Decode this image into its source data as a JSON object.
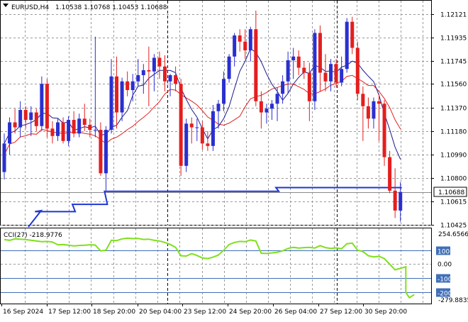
{
  "header": {
    "symbol": "EURUSD,H4",
    "ohlc": "1.10538 1.10768 1.10453 1.10688"
  },
  "price_axis": {
    "labels": [
      "1.12121",
      "1.11935",
      "1.11745",
      "1.11560",
      "1.11370",
      "1.11180",
      "1.10990",
      "1.10800",
      "1.10615",
      "1.10425"
    ],
    "current_price": "1.10688"
  },
  "indicator": {
    "label": "CCI(27) -218.9776",
    "max_label": "254.6566",
    "min_label": "-279.8835",
    "levels": [
      "100",
      "0.00",
      "-100",
      "-200"
    ]
  },
  "time_axis": {
    "labels": [
      "16 Sep 2024",
      "17 Sep 12:00",
      "18 Sep 20:00",
      "20 Sep 04:00",
      "23 Sep 12:00",
      "24 Sep 20:00",
      "26 Sep 04:00",
      "27 Sep 12:00",
      "30 Sep 20:00"
    ]
  },
  "colors": {
    "bull": "#2a2fcf",
    "bear": "#e41e1e",
    "ma_fast": "#e02020",
    "ma_slow": "#1a1a8c",
    "stop_line": "#1f35d6",
    "cci": "#7fe01c",
    "level_100": "#3f6fb8"
  },
  "chart_data": {
    "type": "candlestick",
    "price_range": [
      1.10425,
      1.12121
    ],
    "candles": [
      {
        "o": 1.1085,
        "h": 1.1116,
        "l": 1.1079,
        "c": 1.1108
      },
      {
        "o": 1.1108,
        "h": 1.1129,
        "l": 1.1099,
        "c": 1.1125
      },
      {
        "o": 1.1125,
        "h": 1.1136,
        "l": 1.1116,
        "c": 1.1121
      },
      {
        "o": 1.1121,
        "h": 1.1142,
        "l": 1.1113,
        "c": 1.1135
      },
      {
        "o": 1.1135,
        "h": 1.1138,
        "l": 1.112,
        "c": 1.1127
      },
      {
        "o": 1.1127,
        "h": 1.1138,
        "l": 1.1114,
        "c": 1.1133
      },
      {
        "o": 1.1133,
        "h": 1.1136,
        "l": 1.1118,
        "c": 1.1122
      },
      {
        "o": 1.1122,
        "h": 1.1162,
        "l": 1.1118,
        "c": 1.1156
      },
      {
        "o": 1.1156,
        "h": 1.116,
        "l": 1.1113,
        "c": 1.112
      },
      {
        "o": 1.112,
        "h": 1.1126,
        "l": 1.1108,
        "c": 1.1114
      },
      {
        "o": 1.1114,
        "h": 1.1128,
        "l": 1.111,
        "c": 1.1125
      },
      {
        "o": 1.1125,
        "h": 1.1129,
        "l": 1.1108,
        "c": 1.111
      },
      {
        "o": 1.111,
        "h": 1.113,
        "l": 1.1106,
        "c": 1.1127
      },
      {
        "o": 1.1127,
        "h": 1.1134,
        "l": 1.1113,
        "c": 1.1116
      },
      {
        "o": 1.1116,
        "h": 1.1132,
        "l": 1.1113,
        "c": 1.1128
      },
      {
        "o": 1.1128,
        "h": 1.114,
        "l": 1.1118,
        "c": 1.1123
      },
      {
        "o": 1.1123,
        "h": 1.1128,
        "l": 1.1113,
        "c": 1.1119
      },
      {
        "o": 1.1119,
        "h": 1.1194,
        "l": 1.1113,
        "c": 1.1119
      },
      {
        "o": 1.1119,
        "h": 1.1125,
        "l": 1.1082,
        "c": 1.1084
      },
      {
        "o": 1.1084,
        "h": 1.1122,
        "l": 1.107,
        "c": 1.1119
      },
      {
        "o": 1.1119,
        "h": 1.1176,
        "l": 1.1116,
        "c": 1.1162
      },
      {
        "o": 1.1162,
        "h": 1.1178,
        "l": 1.112,
        "c": 1.1133
      },
      {
        "o": 1.1133,
        "h": 1.1161,
        "l": 1.1126,
        "c": 1.1158
      },
      {
        "o": 1.1158,
        "h": 1.1166,
        "l": 1.1146,
        "c": 1.1151
      },
      {
        "o": 1.1151,
        "h": 1.1164,
        "l": 1.1142,
        "c": 1.1158
      },
      {
        "o": 1.1158,
        "h": 1.1176,
        "l": 1.1154,
        "c": 1.1163
      },
      {
        "o": 1.1163,
        "h": 1.1172,
        "l": 1.1148,
        "c": 1.1167
      },
      {
        "o": 1.1167,
        "h": 1.1186,
        "l": 1.1138,
        "c": 1.1166
      },
      {
        "o": 1.1166,
        "h": 1.118,
        "l": 1.115,
        "c": 1.1177
      },
      {
        "o": 1.1177,
        "h": 1.1182,
        "l": 1.116,
        "c": 1.117
      },
      {
        "o": 1.117,
        "h": 1.1179,
        "l": 1.115,
        "c": 1.1158
      },
      {
        "o": 1.1158,
        "h": 1.1164,
        "l": 1.1146,
        "c": 1.1163
      },
      {
        "o": 1.1163,
        "h": 1.117,
        "l": 1.115,
        "c": 1.1156
      },
      {
        "o": 1.1156,
        "h": 1.116,
        "l": 1.1082,
        "c": 1.109
      },
      {
        "o": 1.109,
        "h": 1.1128,
        "l": 1.1085,
        "c": 1.1124
      },
      {
        "o": 1.1124,
        "h": 1.1129,
        "l": 1.1108,
        "c": 1.1121
      },
      {
        "o": 1.1121,
        "h": 1.1128,
        "l": 1.111,
        "c": 1.1121
      },
      {
        "o": 1.1121,
        "h": 1.1126,
        "l": 1.1103,
        "c": 1.1108
      },
      {
        "o": 1.1108,
        "h": 1.1118,
        "l": 1.1102,
        "c": 1.1106
      },
      {
        "o": 1.1106,
        "h": 1.1139,
        "l": 1.1102,
        "c": 1.1134
      },
      {
        "o": 1.1134,
        "h": 1.1143,
        "l": 1.112,
        "c": 1.114
      },
      {
        "o": 1.114,
        "h": 1.1166,
        "l": 1.1134,
        "c": 1.116
      },
      {
        "o": 1.116,
        "h": 1.118,
        "l": 1.1157,
        "c": 1.1178
      },
      {
        "o": 1.1178,
        "h": 1.1197,
        "l": 1.117,
        "c": 1.1195
      },
      {
        "o": 1.1195,
        "h": 1.12,
        "l": 1.1182,
        "c": 1.119
      },
      {
        "o": 1.119,
        "h": 1.12,
        "l": 1.1176,
        "c": 1.1183
      },
      {
        "o": 1.1183,
        "h": 1.1202,
        "l": 1.1174,
        "c": 1.12
      },
      {
        "o": 1.12,
        "h": 1.1215,
        "l": 1.1138,
        "c": 1.1142
      },
      {
        "o": 1.1142,
        "h": 1.115,
        "l": 1.112,
        "c": 1.1133
      },
      {
        "o": 1.1133,
        "h": 1.114,
        "l": 1.1124,
        "c": 1.1136
      },
      {
        "o": 1.1136,
        "h": 1.1143,
        "l": 1.1127,
        "c": 1.114
      },
      {
        "o": 1.114,
        "h": 1.1153,
        "l": 1.1126,
        "c": 1.1148
      },
      {
        "o": 1.1148,
        "h": 1.1163,
        "l": 1.114,
        "c": 1.1158
      },
      {
        "o": 1.1158,
        "h": 1.1182,
        "l": 1.1148,
        "c": 1.1175
      },
      {
        "o": 1.1175,
        "h": 1.1185,
        "l": 1.116,
        "c": 1.1178
      },
      {
        "o": 1.1178,
        "h": 1.1183,
        "l": 1.1163,
        "c": 1.1169
      },
      {
        "o": 1.1169,
        "h": 1.1174,
        "l": 1.116,
        "c": 1.1165
      },
      {
        "o": 1.1165,
        "h": 1.1173,
        "l": 1.1126,
        "c": 1.1142
      },
      {
        "o": 1.1142,
        "h": 1.12,
        "l": 1.1135,
        "c": 1.1197
      },
      {
        "o": 1.1197,
        "h": 1.1203,
        "l": 1.115,
        "c": 1.1165
      },
      {
        "o": 1.1165,
        "h": 1.118,
        "l": 1.115,
        "c": 1.1158
      },
      {
        "o": 1.1158,
        "h": 1.1176,
        "l": 1.115,
        "c": 1.1172
      },
      {
        "o": 1.1172,
        "h": 1.1176,
        "l": 1.1153,
        "c": 1.1157
      },
      {
        "o": 1.1157,
        "h": 1.1178,
        "l": 1.1154,
        "c": 1.1168
      },
      {
        "o": 1.1168,
        "h": 1.1209,
        "l": 1.1165,
        "c": 1.1206
      },
      {
        "o": 1.1206,
        "h": 1.121,
        "l": 1.118,
        "c": 1.1185
      },
      {
        "o": 1.1185,
        "h": 1.119,
        "l": 1.1143,
        "c": 1.1148
      },
      {
        "o": 1.1148,
        "h": 1.1154,
        "l": 1.111,
        "c": 1.1138
      },
      {
        "o": 1.1138,
        "h": 1.1145,
        "l": 1.112,
        "c": 1.1128
      },
      {
        "o": 1.1128,
        "h": 1.1145,
        "l": 1.112,
        "c": 1.1142
      },
      {
        "o": 1.1142,
        "h": 1.1148,
        "l": 1.111,
        "c": 1.114
      },
      {
        "o": 1.114,
        "h": 1.1143,
        "l": 1.109,
        "c": 1.1097
      },
      {
        "o": 1.1097,
        "h": 1.1102,
        "l": 1.1068,
        "c": 1.107
      },
      {
        "o": 1.107,
        "h": 1.1088,
        "l": 1.1048,
        "c": 1.1054
      },
      {
        "o": 1.1054,
        "h": 1.1077,
        "l": 1.1045,
        "c": 1.1069
      }
    ],
    "stop_line": [
      {
        "from": 6,
        "to": 13,
        "v": 1.10531
      },
      {
        "from": 13,
        "to": 19,
        "v": 1.1059
      },
      {
        "from": 19,
        "to": 51,
        "v": 1.10695
      },
      {
        "from": 51,
        "to": 74,
        "v": 1.10725
      }
    ],
    "cci": [
      175,
      170,
      180,
      178,
      175,
      170,
      165,
      160,
      162,
      158,
      138,
      140,
      135,
      130,
      133,
      135,
      138,
      136,
      95,
      100,
      170,
      168,
      180,
      185,
      182,
      183,
      176,
      178,
      170,
      165,
      155,
      140,
      120,
      60,
      58,
      75,
      62,
      45,
      40,
      50,
      65,
      100,
      140,
      155,
      162,
      160,
      172,
      165,
      78,
      76,
      80,
      85,
      95,
      112,
      120,
      115,
      118,
      120,
      115,
      132,
      118,
      112,
      116,
      110,
      145,
      150,
      100,
      90,
      60,
      52,
      56,
      40,
      0,
      -40,
      -30,
      -18
    ]
  }
}
